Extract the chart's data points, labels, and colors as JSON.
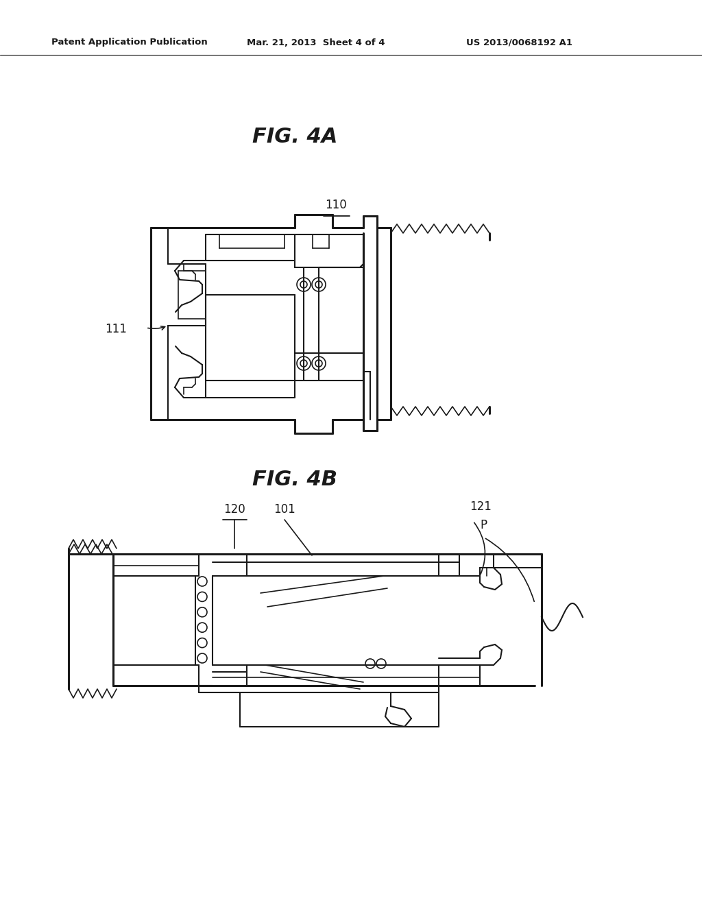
{
  "header_left": "Patent Application Publication",
  "header_center": "Mar. 21, 2013  Sheet 4 of 4",
  "header_right": "US 2013/0068192 A1",
  "fig4a_label": "FIG. 4A",
  "fig4b_label": "FIG. 4B",
  "label_110": "110",
  "label_111": "111",
  "label_120": "120",
  "label_101": "101",
  "label_121": "121",
  "label_P": "P",
  "bg_color": "#ffffff",
  "line_color": "#1a1a1a",
  "text_color": "#1a1a1a"
}
